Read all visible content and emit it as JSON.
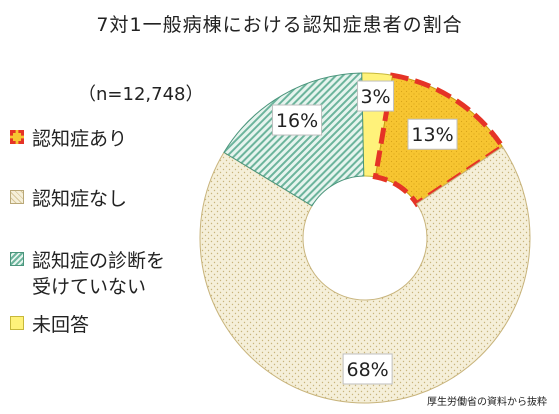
{
  "title": "7対1一般病棟における認知症患者の割合",
  "sample_size": "（n=12,748）",
  "source_note": "厚生労働省の資料から抜粋",
  "colors": {
    "dementia": "#f7c531",
    "no_dementia": "#f5efd9",
    "under_diagnosis": "#6cb49c",
    "no_answer": "#fff27a",
    "highlight": "#e53326"
  },
  "chart_data": {
    "type": "pie",
    "subtype": "donut",
    "title": "7対1一般病棟における認知症患者の割合",
    "categories": [
      "認知症あり",
      "認知症なし",
      "認知症の診断を受けていない",
      "未回答"
    ],
    "values": [
      13,
      68,
      16,
      3
    ],
    "labels": [
      "13%",
      "68%",
      "16%",
      "3%"
    ],
    "highlighted_category": "認知症あり",
    "legend_position": "left"
  },
  "legend": [
    {
      "label": "認知症あり"
    },
    {
      "label": "認知症なし"
    },
    {
      "label": "認知症の診断を\n受けていない"
    },
    {
      "label": "未回答"
    }
  ]
}
